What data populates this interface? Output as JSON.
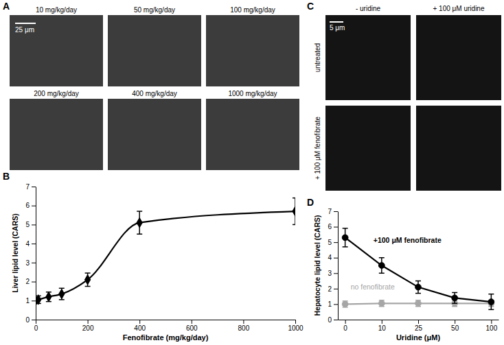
{
  "panel_labels": [
    "A",
    "B",
    "C",
    "D"
  ],
  "images_a": {
    "labels": [
      "10 mg/kg/day",
      "50 mg/kg/day",
      "100 mg/kg/day",
      "200 mg/kg/day",
      "400 mg/kg/day",
      "1000 mg/kg/day"
    ],
    "scale_bar": "25 μm"
  },
  "images_c": {
    "columns": [
      "- uridine",
      "+ 100 μM uridine"
    ],
    "rows": [
      "untreated",
      "+ 100 μM fenofibrate"
    ],
    "scale_bar": "5 μm"
  },
  "chart_data": [
    {
      "type": "line",
      "x": [
        0,
        10,
        50,
        100,
        200,
        400,
        1000
      ],
      "series": [
        {
          "color": "#000000",
          "marker": "diamond",
          "values": [
            1.0,
            1.05,
            1.2,
            1.35,
            2.1,
            5.1,
            5.7
          ],
          "errors": [
            0.15,
            0.2,
            0.25,
            0.3,
            0.35,
            0.6,
            0.7
          ]
        }
      ],
      "xlim": [
        0,
        1000
      ],
      "xticks": [
        0,
        200,
        400,
        600,
        800,
        1000
      ],
      "ylim": [
        0,
        7
      ],
      "yticks": [
        0,
        1,
        2,
        3,
        4,
        5,
        6,
        7
      ],
      "x_label": "Fenofibrate (mg/kg/day)",
      "y_label": "Liver lipid level (CARS)"
    },
    {
      "type": "line",
      "categories": [
        "0",
        "10",
        "25",
        "50",
        "100"
      ],
      "series": [
        {
          "name": "no fenofibrate",
          "color": "#a6a6a6",
          "marker": "circle",
          "values": [
            1.0,
            1.05,
            1.05,
            1.05,
            1.05
          ],
          "errors": [
            0.2,
            0.2,
            0.2,
            0.2,
            0.2
          ]
        },
        {
          "name": "+100 μM fenofibrate",
          "color": "#000000",
          "marker": "circle",
          "values": [
            5.3,
            3.5,
            2.1,
            1.4,
            1.15
          ],
          "errors": [
            0.6,
            0.5,
            0.4,
            0.35,
            0.5
          ]
        }
      ],
      "ylim": [
        0,
        7
      ],
      "yticks": [
        0,
        1,
        2,
        3,
        4,
        5,
        6,
        7
      ],
      "x_label": "Uridine (μM)",
      "y_label": "Hepatocyte lipid level (CARS)"
    }
  ]
}
